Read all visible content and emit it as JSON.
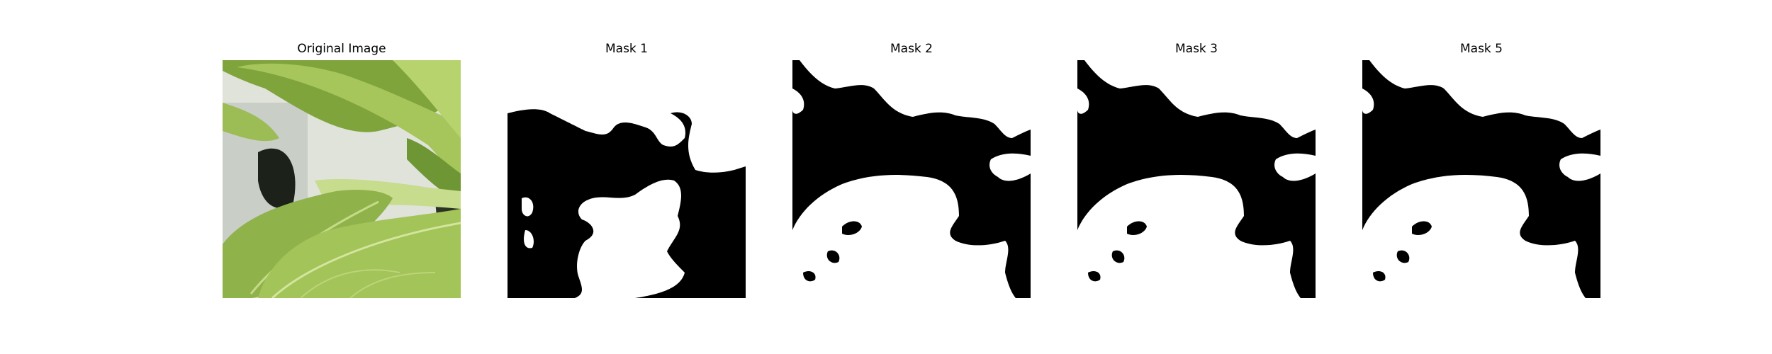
{
  "panels": [
    {
      "title": "Original Image",
      "kind": "photo",
      "subject": "green-leafy-vegetable"
    },
    {
      "title": "Mask 1",
      "kind": "mask"
    },
    {
      "title": "Mask 2",
      "kind": "mask"
    },
    {
      "title": "Mask 3",
      "kind": "mask"
    },
    {
      "title": "Mask 5",
      "kind": "mask"
    }
  ],
  "colors": {
    "background": "#ffffff",
    "mask_background": "#000000",
    "mask_foreground": "#ffffff",
    "leaf_light": "#b8d36a",
    "leaf_mid": "#8fb24a",
    "leaf_dark": "#4f7a26",
    "pot_gray": "#d9ddd6",
    "shadow": "#1c221a"
  }
}
